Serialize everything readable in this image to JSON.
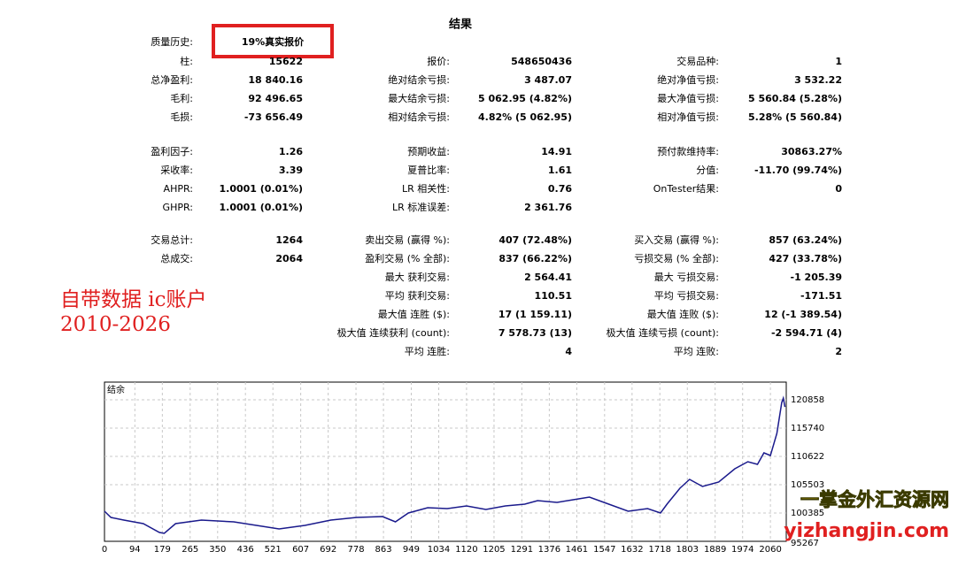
{
  "report": {
    "title": "结果",
    "quality": {
      "label": "质量历史:",
      "value": "19%真实报价"
    },
    "sections": [
      [
        [
          [
            "柱:",
            "15622"
          ],
          [
            "报价:",
            "548650436"
          ],
          [
            "交易品种:",
            "1"
          ]
        ],
        [
          [
            "总净盈利:",
            "18 840.16"
          ],
          [
            "绝对结余亏损:",
            "3 487.07"
          ],
          [
            "绝对净值亏损:",
            "3 532.22"
          ]
        ],
        [
          [
            "毛利:",
            "92 496.65"
          ],
          [
            "最大结余亏损:",
            "5 062.95 (4.82%)"
          ],
          [
            "最大净值亏损:",
            "5 560.84 (5.28%)"
          ]
        ],
        [
          [
            "毛损:",
            "-73 656.49"
          ],
          [
            "相对结余亏损:",
            "4.82% (5 062.95)"
          ],
          [
            "相对净值亏损:",
            "5.28% (5 560.84)"
          ]
        ]
      ],
      [
        [
          [
            "盈利因子:",
            "1.26"
          ],
          [
            "预期收益:",
            "14.91"
          ],
          [
            "预付款维持率:",
            "30863.27%"
          ]
        ],
        [
          [
            "采收率:",
            "3.39"
          ],
          [
            "夏普比率:",
            "1.61"
          ],
          [
            "分值:",
            "-11.70 (99.74%)"
          ]
        ],
        [
          [
            "AHPR:",
            "1.0001 (0.01%)"
          ],
          [
            "LR 相关性:",
            "0.76"
          ],
          [
            "OnTester结果:",
            "0"
          ]
        ],
        [
          [
            "GHPR:",
            "1.0001 (0.01%)"
          ],
          [
            "LR 标准误差:",
            "2 361.76"
          ],
          null
        ]
      ],
      [
        [
          [
            "交易总计:",
            "1264"
          ],
          [
            "卖出交易 (赢得 %):",
            "407 (72.48%)"
          ],
          [
            "买入交易 (赢得 %):",
            "857 (63.24%)"
          ]
        ],
        [
          [
            "总成交:",
            "2064"
          ],
          [
            "盈利交易 (% 全部):",
            "837 (66.22%)"
          ],
          [
            "亏损交易 (% 全部):",
            "427 (33.78%)"
          ]
        ],
        [
          null,
          [
            "最大 获利交易:",
            "2 564.41"
          ],
          [
            "最大 亏损交易:",
            "-1 205.39"
          ]
        ],
        [
          null,
          [
            "平均 获利交易:",
            "110.51"
          ],
          [
            "平均 亏损交易:",
            "-171.51"
          ]
        ],
        [
          null,
          [
            "最大值 连胜 ($):",
            "17 (1 159.11)"
          ],
          [
            "最大值 连败 ($):",
            "12 (-1 389.54)"
          ]
        ],
        [
          null,
          [
            "极大值 连续获利 (count):",
            "7 578.73 (13)"
          ],
          [
            "极大值 连续亏损 (count):",
            "-2 594.71 (4)"
          ]
        ],
        [
          null,
          [
            "平均 连胜:",
            "4"
          ],
          [
            "平均 连败:",
            "2"
          ]
        ]
      ]
    ]
  },
  "annotation": [
    "自带数据 ic账户",
    "2010-2026"
  ],
  "watermark": [
    "一掌金外汇资源网",
    "yizhangjin.com"
  ],
  "chart_data": {
    "type": "line",
    "title": "结余",
    "color": "#1a1a8c",
    "grid": true,
    "xlim": [
      0,
      2109
    ],
    "xticks": [
      0,
      94,
      179,
      265,
      350,
      436,
      521,
      607,
      692,
      778,
      863,
      949,
      1034,
      1120,
      1205,
      1291,
      1376,
      1461,
      1547,
      1632,
      1718,
      1803,
      1889,
      1974,
      2060
    ],
    "ylim": [
      95267,
      124057
    ],
    "yticks": [
      95267,
      100385,
      105503,
      110622,
      115740,
      120858
    ],
    "x": [
      0,
      20,
      60,
      120,
      170,
      185,
      220,
      300,
      400,
      470,
      540,
      620,
      700,
      780,
      860,
      900,
      940,
      1000,
      1060,
      1120,
      1180,
      1240,
      1300,
      1340,
      1400,
      1450,
      1500,
      1560,
      1620,
      1680,
      1720,
      1740,
      1780,
      1810,
      1850,
      1900,
      1950,
      1990,
      2020,
      2040,
      2060,
      2080,
      2095,
      2100,
      2105
    ],
    "values": [
      100700,
      99585,
      99100,
      98465,
      96870,
      96700,
      98465,
      99100,
      98785,
      98145,
      97505,
      98145,
      99100,
      99585,
      99745,
      98785,
      100385,
      101345,
      101185,
      101665,
      101025,
      101665,
      101985,
      102625,
      102305,
      102785,
      103260,
      101985,
      100700,
      101185,
      100385,
      101985,
      104860,
      106460,
      105180,
      105980,
      108380,
      109660,
      109180,
      111260,
      110780,
      114775,
      120370,
      121170,
      119570
    ]
  }
}
